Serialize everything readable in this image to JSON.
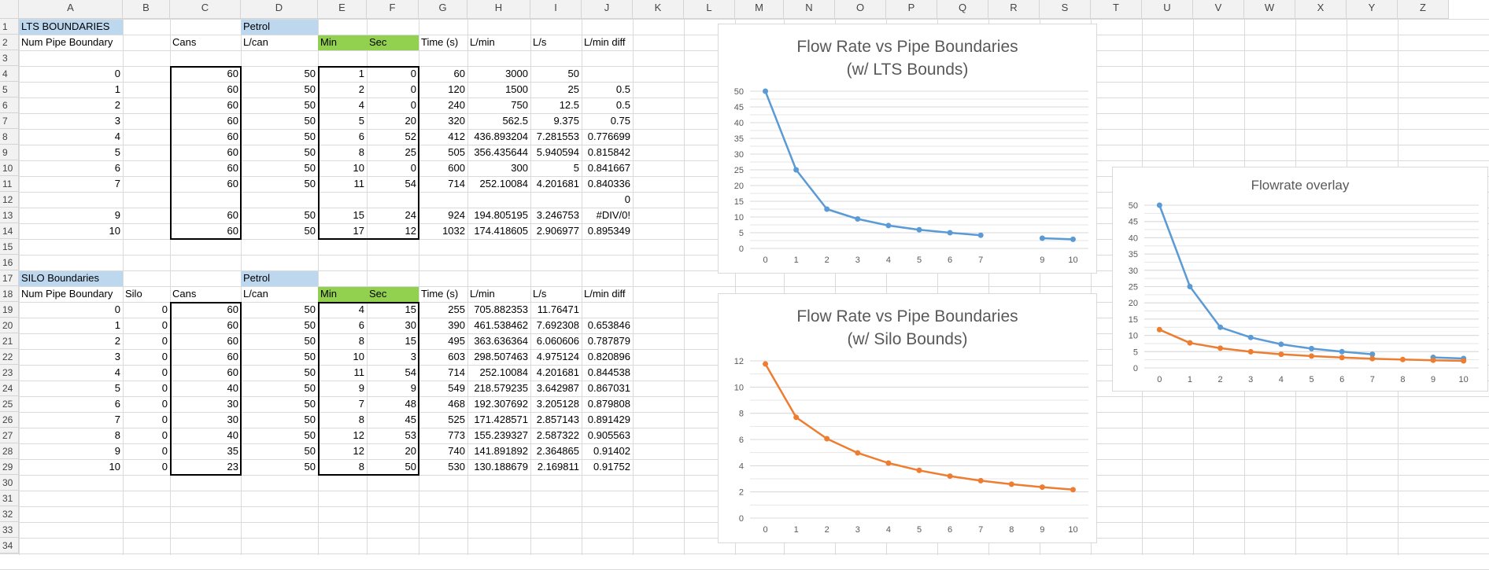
{
  "columns": [
    "A",
    "B",
    "C",
    "D",
    "E",
    "F",
    "G",
    "H",
    "I",
    "J",
    "K",
    "L",
    "M",
    "N",
    "O",
    "P",
    "Q",
    "R",
    "S",
    "T",
    "U",
    "V",
    "W",
    "X",
    "Y",
    "Z"
  ],
  "rows": [
    "1",
    "2",
    "3",
    "4",
    "5",
    "6",
    "7",
    "8",
    "9",
    "10",
    "11",
    "12",
    "13",
    "14",
    "15",
    "16",
    "17",
    "18",
    "19",
    "20",
    "21",
    "22",
    "23",
    "24",
    "25",
    "26",
    "27",
    "28",
    "29",
    "30",
    "31",
    "32",
    "33",
    "34"
  ],
  "lts": {
    "title": "LTS BOUNDARIES",
    "petrol": "Petrol",
    "headers": [
      "Num Pipe Boundary",
      "",
      "Cans",
      "L/can",
      "Min",
      "Sec",
      "Time (s)",
      "L/min",
      "L/s",
      "L/min diff"
    ],
    "data": [
      [
        "0",
        "",
        "60",
        "50",
        "1",
        "0",
        "60",
        "3000",
        "50",
        ""
      ],
      [
        "1",
        "",
        "60",
        "50",
        "2",
        "0",
        "120",
        "1500",
        "25",
        "0.5"
      ],
      [
        "2",
        "",
        "60",
        "50",
        "4",
        "0",
        "240",
        "750",
        "12.5",
        "0.5"
      ],
      [
        "3",
        "",
        "60",
        "50",
        "5",
        "20",
        "320",
        "562.5",
        "9.375",
        "0.75"
      ],
      [
        "4",
        "",
        "60",
        "50",
        "6",
        "52",
        "412",
        "436.893204",
        "7.281553",
        "0.776699"
      ],
      [
        "5",
        "",
        "60",
        "50",
        "8",
        "25",
        "505",
        "356.435644",
        "5.940594",
        "0.815842"
      ],
      [
        "6",
        "",
        "60",
        "50",
        "10",
        "0",
        "600",
        "300",
        "5",
        "0.841667"
      ],
      [
        "7",
        "",
        "60",
        "50",
        "11",
        "54",
        "714",
        "252.10084",
        "4.201681",
        "0.840336"
      ],
      [
        "",
        "",
        "",
        "",
        "",
        "",
        "",
        "",
        "",
        "0"
      ],
      [
        "9",
        "",
        "60",
        "50",
        "15",
        "24",
        "924",
        "194.805195",
        "3.246753",
        "#DIV/0!"
      ],
      [
        "10",
        "",
        "60",
        "50",
        "17",
        "12",
        "1032",
        "174.418605",
        "2.906977",
        "0.895349"
      ]
    ]
  },
  "silo": {
    "title": "SILO Boundaries",
    "petrol": "Petrol",
    "headers": [
      "Num Pipe Boundary",
      "Silo",
      "Cans",
      "L/can",
      "Min",
      "Sec",
      "Time (s)",
      "L/min",
      "L/s",
      "L/min diff"
    ],
    "data": [
      [
        "0",
        "0",
        "60",
        "50",
        "4",
        "15",
        "255",
        "705.882353",
        "11.76471",
        ""
      ],
      [
        "1",
        "0",
        "60",
        "50",
        "6",
        "30",
        "390",
        "461.538462",
        "7.692308",
        "0.653846"
      ],
      [
        "2",
        "0",
        "60",
        "50",
        "8",
        "15",
        "495",
        "363.636364",
        "6.060606",
        "0.787879"
      ],
      [
        "3",
        "0",
        "60",
        "50",
        "10",
        "3",
        "603",
        "298.507463",
        "4.975124",
        "0.820896"
      ],
      [
        "4",
        "0",
        "60",
        "50",
        "11",
        "54",
        "714",
        "252.10084",
        "4.201681",
        "0.844538"
      ],
      [
        "5",
        "0",
        "40",
        "50",
        "9",
        "9",
        "549",
        "218.579235",
        "3.642987",
        "0.867031"
      ],
      [
        "6",
        "0",
        "30",
        "50",
        "7",
        "48",
        "468",
        "192.307692",
        "3.205128",
        "0.879808"
      ],
      [
        "7",
        "0",
        "30",
        "50",
        "8",
        "45",
        "525",
        "171.428571",
        "2.857143",
        "0.891429"
      ],
      [
        "8",
        "0",
        "40",
        "50",
        "12",
        "53",
        "773",
        "155.239327",
        "2.587322",
        "0.905563"
      ],
      [
        "9",
        "0",
        "35",
        "50",
        "12",
        "20",
        "740",
        "141.891892",
        "2.364865",
        "0.91402"
      ],
      [
        "10",
        "0",
        "23",
        "50",
        "8",
        "50",
        "530",
        "130.188679",
        "2.169811",
        "0.91752"
      ]
    ]
  },
  "chart_data": [
    {
      "type": "line",
      "title": "Flow Rate vs Pipe Boundaries (w/ LTS Bounds)",
      "title_lines": [
        "Flow Rate vs Pipe Boundaries",
        "(w/ LTS Bounds)"
      ],
      "categories": [
        "0",
        "1",
        "2",
        "3",
        "4",
        "5",
        "6",
        "7",
        "",
        "9",
        "10"
      ],
      "series": [
        {
          "color": "#5b9bd5",
          "values": [
            50,
            25,
            12.5,
            9.375,
            7.281553,
            5.940594,
            5,
            4.201681,
            null,
            3.246753,
            2.906977
          ]
        }
      ],
      "ylim": [
        0,
        50
      ],
      "yticks": [
        0,
        5,
        10,
        15,
        20,
        25,
        30,
        35,
        40,
        45,
        50
      ],
      "grid": true
    },
    {
      "type": "line",
      "title": "Flow Rate vs Pipe Boundaries (w/ Silo Bounds)",
      "title_lines": [
        "Flow Rate vs Pipe Boundaries",
        "(w/ Silo Bounds)"
      ],
      "categories": [
        "0",
        "1",
        "2",
        "3",
        "4",
        "5",
        "6",
        "7",
        "8",
        "9",
        "10"
      ],
      "series": [
        {
          "color": "#ed7d31",
          "values": [
            11.76471,
            7.692308,
            6.060606,
            4.975124,
            4.201681,
            3.642987,
            3.205128,
            2.857143,
            2.587322,
            2.364865,
            2.169811
          ]
        }
      ],
      "ylim": [
        0,
        12
      ],
      "yticks": [
        0,
        2,
        4,
        6,
        8,
        10,
        12
      ],
      "grid": true
    },
    {
      "type": "line",
      "title": "Flowrate overlay",
      "title_lines": [
        "Flowrate overlay"
      ],
      "categories": [
        "0",
        "1",
        "2",
        "3",
        "4",
        "5",
        "6",
        "7",
        "8",
        "9",
        "10"
      ],
      "series": [
        {
          "color": "#5b9bd5",
          "values": [
            50,
            25,
            12.5,
            9.375,
            7.281553,
            5.940594,
            5,
            4.201681,
            null,
            3.246753,
            2.906977
          ]
        },
        {
          "color": "#ed7d31",
          "values": [
            11.76471,
            7.692308,
            6.060606,
            4.975124,
            4.201681,
            3.642987,
            3.205128,
            2.857143,
            2.587322,
            2.364865,
            2.169811
          ]
        }
      ],
      "ylim": [
        0,
        50
      ],
      "yticks": [
        0,
        5,
        10,
        15,
        20,
        25,
        30,
        35,
        40,
        45,
        50
      ],
      "grid": true
    }
  ]
}
